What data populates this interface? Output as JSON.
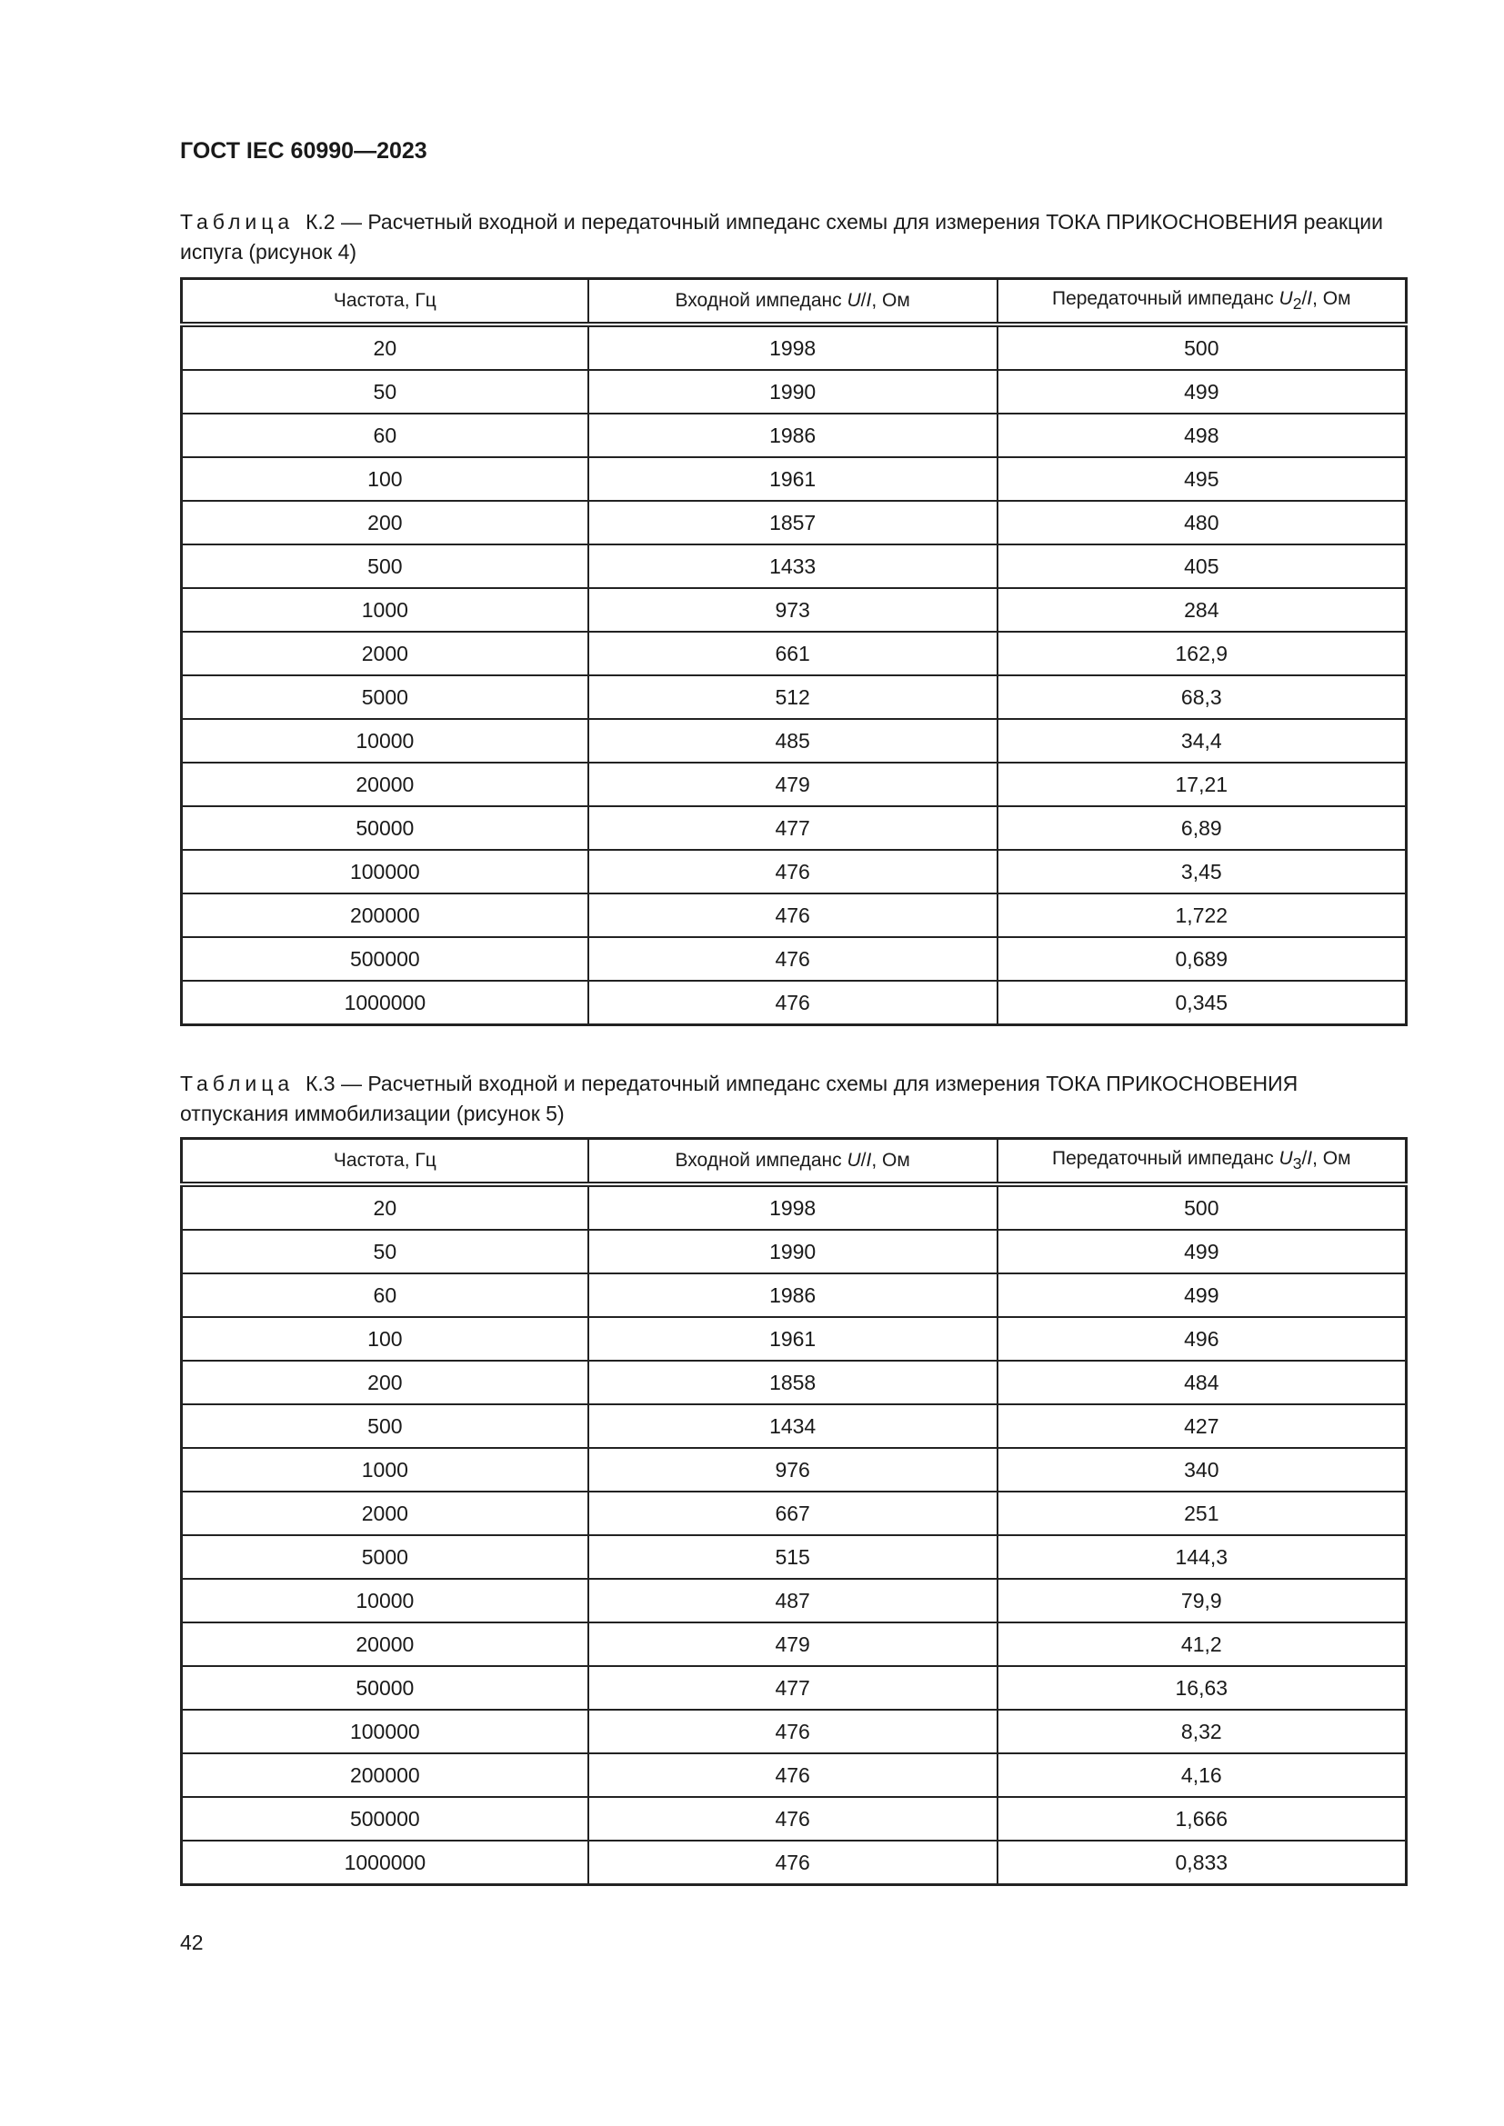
{
  "header": {
    "title": "ГОСТ IEC 60990—2023"
  },
  "tables": [
    {
      "label": "Таблица",
      "caption": "К.2 — Расчетный входной и передаточный импеданс схемы для измерения ТОКА ПРИКОСНОВЕНИЯ реакции испуга (рисунок 4)",
      "columns": [
        "Частота, Гц",
        "Входной импеданс U/I, Ом",
        "Передаточный импеданс U2/I, Ом"
      ],
      "col3_sub": "2",
      "rows": [
        [
          "20",
          "1998",
          "500"
        ],
        [
          "50",
          "1990",
          "499"
        ],
        [
          "60",
          "1986",
          "498"
        ],
        [
          "100",
          "1961",
          "495"
        ],
        [
          "200",
          "1857",
          "480"
        ],
        [
          "500",
          "1433",
          "405"
        ],
        [
          "1000",
          "973",
          "284"
        ],
        [
          "2000",
          "661",
          "162,9"
        ],
        [
          "5000",
          "512",
          "68,3"
        ],
        [
          "10000",
          "485",
          "34,4"
        ],
        [
          "20000",
          "479",
          "17,21"
        ],
        [
          "50000",
          "477",
          "6,89"
        ],
        [
          "100000",
          "476",
          "3,45"
        ],
        [
          "200000",
          "476",
          "1,722"
        ],
        [
          "500000",
          "476",
          "0,689"
        ],
        [
          "1000000",
          "476",
          "0,345"
        ]
      ]
    },
    {
      "label": "Таблица",
      "caption": "К.3 — Расчетный входной и передаточный импеданс схемы для измерения ТОКА ПРИКОСНОВЕНИЯ отпускания иммобилизации (рисунок 5)",
      "columns": [
        "Частота, Гц",
        "Входной импеданс U/I, Ом",
        "Передаточный импеданс U3/I, Ом"
      ],
      "col3_sub": "3",
      "rows": [
        [
          "20",
          "1998",
          "500"
        ],
        [
          "50",
          "1990",
          "499"
        ],
        [
          "60",
          "1986",
          "499"
        ],
        [
          "100",
          "1961",
          "496"
        ],
        [
          "200",
          "1858",
          "484"
        ],
        [
          "500",
          "1434",
          "427"
        ],
        [
          "1000",
          "976",
          "340"
        ],
        [
          "2000",
          "667",
          "251"
        ],
        [
          "5000",
          "515",
          "144,3"
        ],
        [
          "10000",
          "487",
          "79,9"
        ],
        [
          "20000",
          "479",
          "41,2"
        ],
        [
          "50000",
          "477",
          "16,63"
        ],
        [
          "100000",
          "476",
          "8,32"
        ],
        [
          "200000",
          "476",
          "4,16"
        ],
        [
          "500000",
          "476",
          "1,666"
        ],
        [
          "1000000",
          "476",
          "0,833"
        ]
      ]
    }
  ],
  "footer": {
    "page_number": "42"
  }
}
